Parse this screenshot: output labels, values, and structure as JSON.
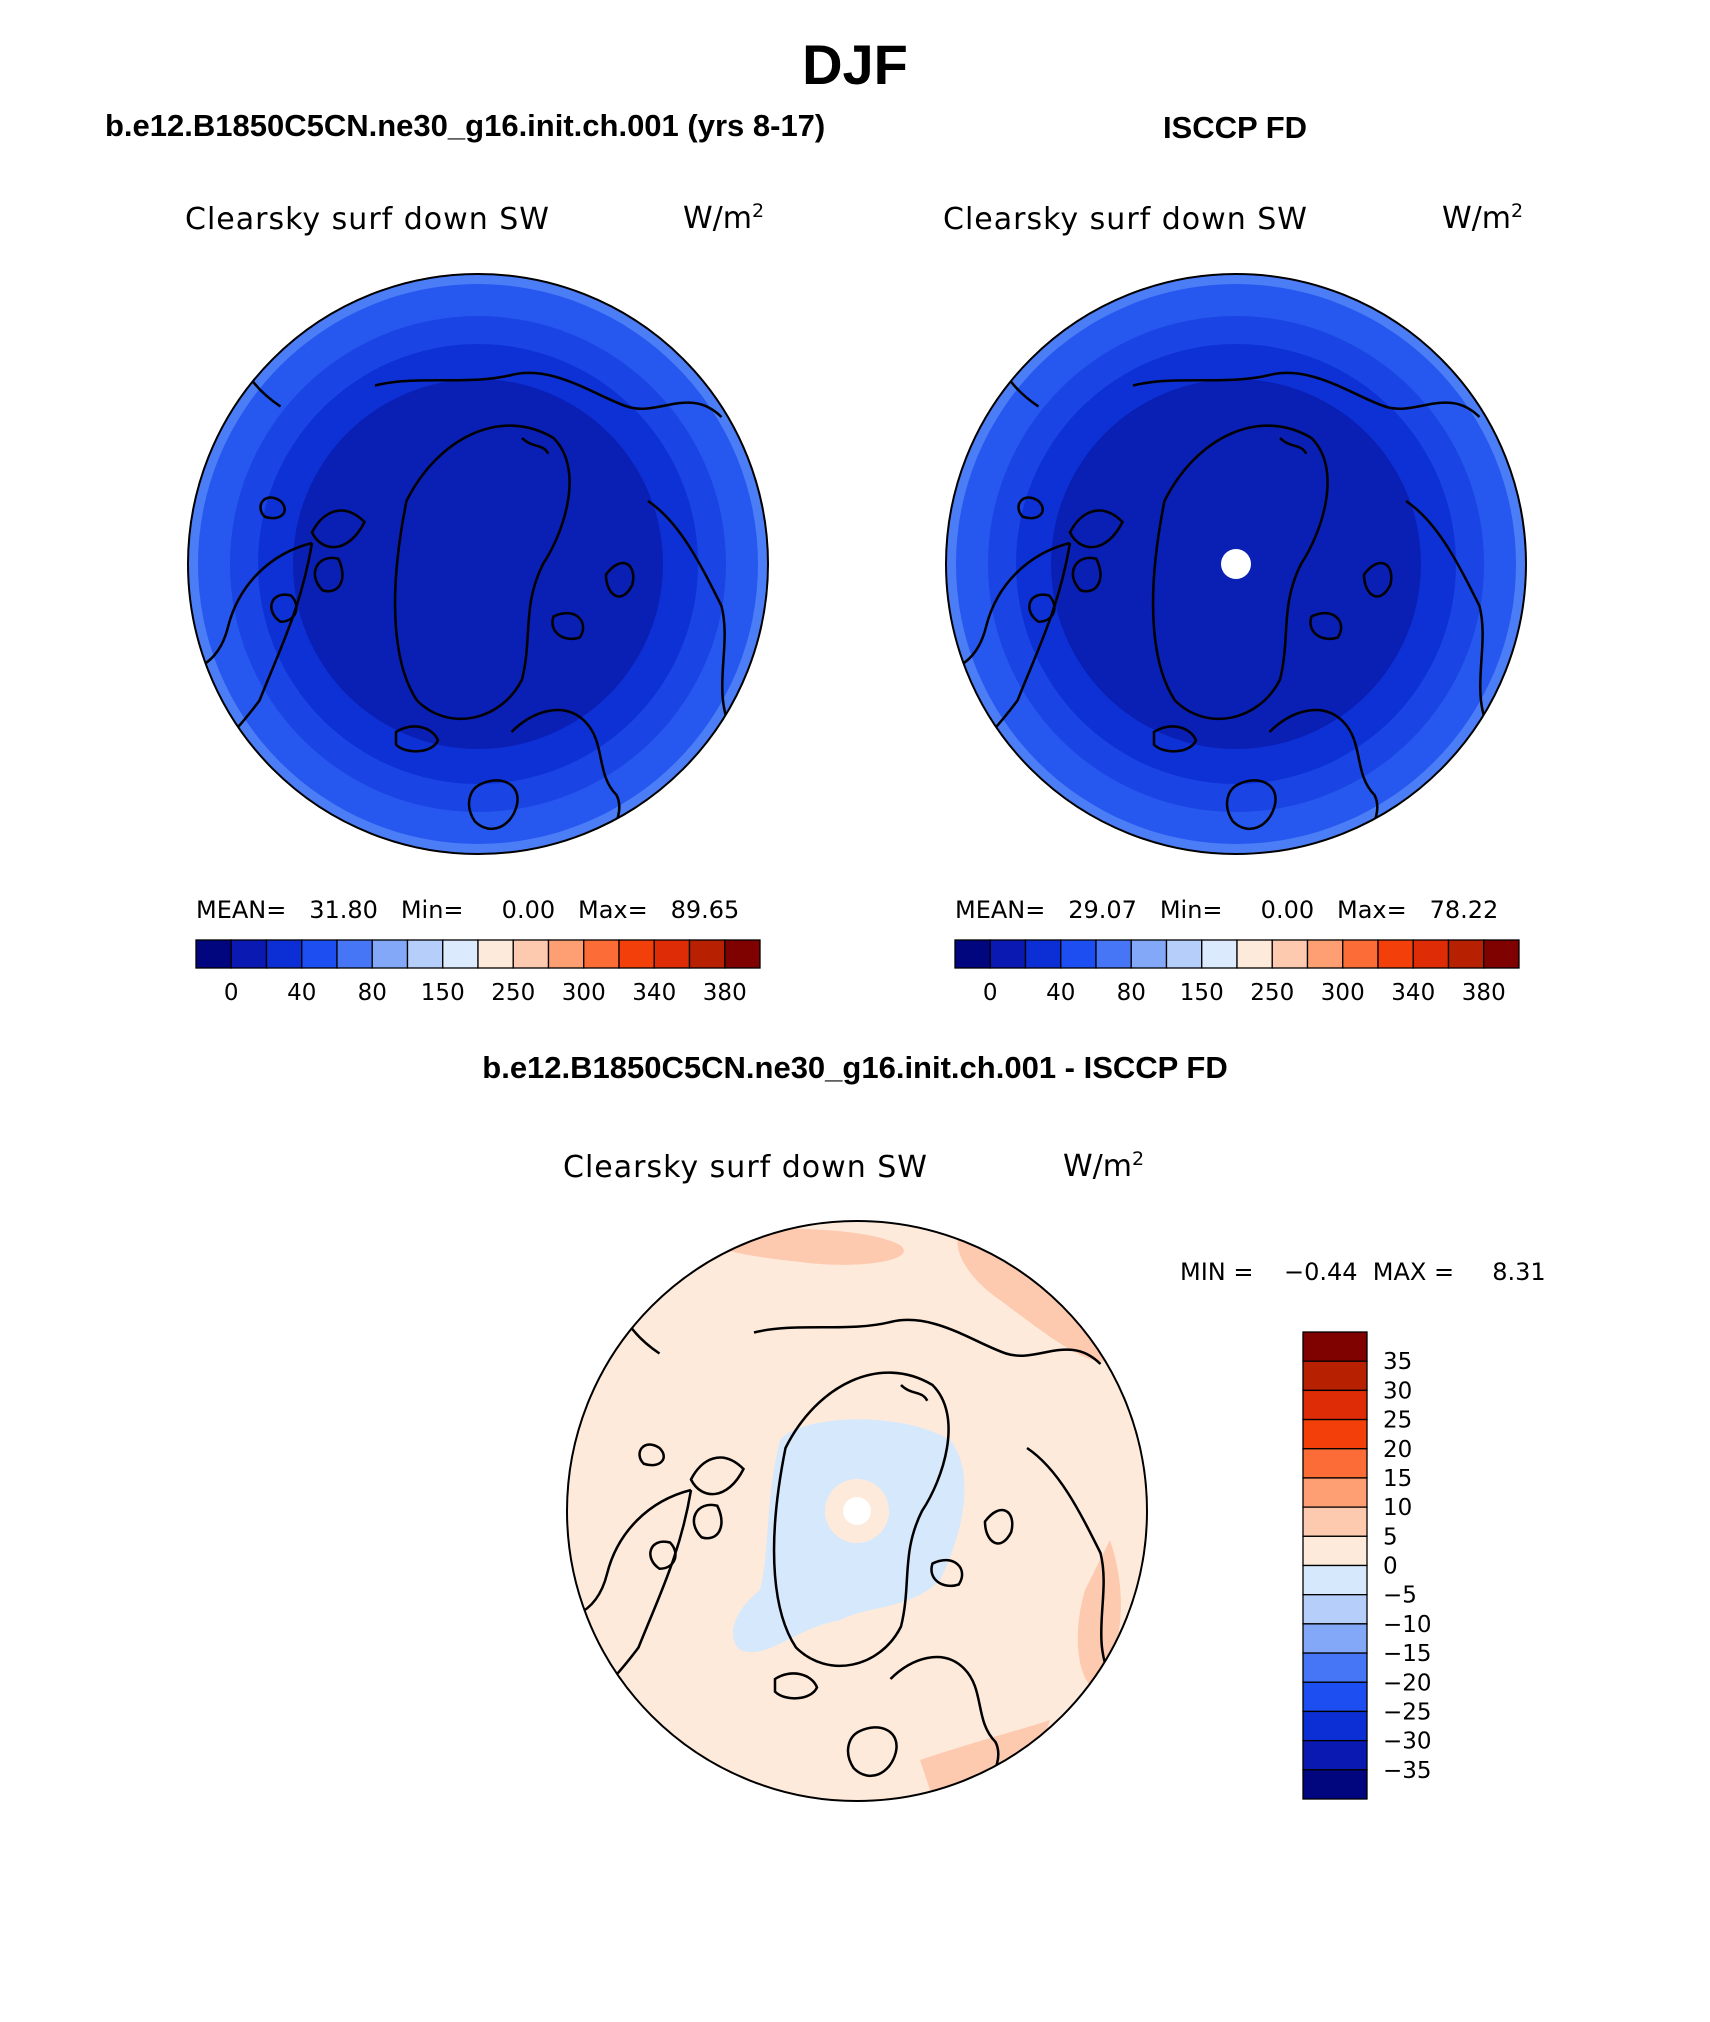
{
  "figure": {
    "title": "DJF",
    "model_title": "b.e12.B1850C5CN.ne30_g16.init.ch.001 (yrs 8-17)",
    "obs_title": "ISCCP FD",
    "diff_title": "b.e12.B1850C5CN.ne30_g16.init.ch.001 - ISCCP FD"
  },
  "panels": {
    "model": {
      "variable": "Clearsky surf down SW",
      "units_base": "W/m",
      "units_exp": "2",
      "stats_text": "MEAN=   31.80   Min=     0.00   Max=   89.65",
      "colors": [
        "#01067e",
        "#0a19b2",
        "#0c2ed5",
        "#1c4ef2",
        "#4676f5",
        "#82a8f7",
        "#b6cefa",
        "#dbeafd",
        "#feeadb",
        "#fdcab0",
        "#fd9f73",
        "#fc6c36",
        "#f33f0a",
        "#de2c06",
        "#b82002",
        "#7f0201"
      ],
      "tick_labels": [
        "0",
        "40",
        "80",
        "150",
        "250",
        "300",
        "340",
        "380"
      ]
    },
    "obs": {
      "variable": "Clearsky surf down SW",
      "units_base": "W/m",
      "units_exp": "2",
      "stats_text": "MEAN=   29.07   Min=     0.00   Max=   78.22",
      "colors": [
        "#01067e",
        "#0a19b2",
        "#0c2ed5",
        "#1c4ef2",
        "#4676f5",
        "#82a8f7",
        "#b6cefa",
        "#dbeafd",
        "#feeadb",
        "#fdcab0",
        "#fd9f73",
        "#fc6c36",
        "#f33f0a",
        "#de2c06",
        "#b82002",
        "#7f0201"
      ],
      "tick_labels": [
        "0",
        "40",
        "80",
        "150",
        "250",
        "300",
        "340",
        "380"
      ]
    },
    "diff": {
      "variable": "Clearsky surf down SW",
      "units_base": "W/m",
      "units_exp": "2",
      "min_max_text": "MIN =    −0.44  MAX =     8.31",
      "colors": [
        "#7f0201",
        "#b82002",
        "#de2c06",
        "#f33f0a",
        "#fc6c36",
        "#fd9f73",
        "#fdcab0",
        "#feeadb",
        "#d6e8fc",
        "#b6cefa",
        "#82a8f7",
        "#4676f5",
        "#1c4ef2",
        "#0c2ed5",
        "#0a19b2",
        "#01067e"
      ],
      "tick_labels": [
        "35",
        "30",
        "25",
        "20",
        "15",
        "10",
        "5",
        "0",
        "−5",
        "−10",
        "−15",
        "−20",
        "−25",
        "−30",
        "−35"
      ]
    }
  }
}
